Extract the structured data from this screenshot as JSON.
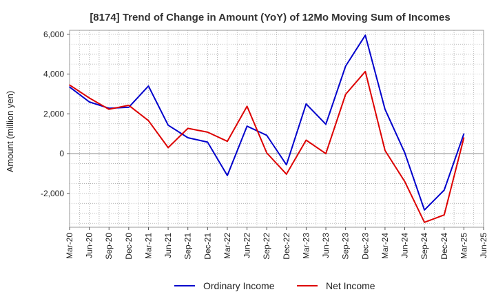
{
  "chart_data": {
    "type": "line",
    "title": "[8174]  Trend of Change in Amount (YoY) of 12Mo Moving Sum of Incomes",
    "xlabel": "",
    "ylabel": "Amount (million yen)",
    "ylim": [
      -3700,
      6200
    ],
    "yticks": [
      -2000,
      0,
      2000,
      4000,
      6000
    ],
    "ytick_labels": [
      "-2,000",
      "0",
      "2,000",
      "4,000",
      "6,000"
    ],
    "categories": [
      "Mar-20",
      "Jun-20",
      "Sep-20",
      "Dec-20",
      "Mar-21",
      "Jun-21",
      "Sep-21",
      "Dec-21",
      "Mar-22",
      "Jun-22",
      "Sep-22",
      "Dec-22",
      "Mar-23",
      "Jun-23",
      "Sep-23",
      "Dec-23",
      "Mar-24",
      "Jun-24",
      "Sep-24",
      "Dec-24",
      "Mar-25",
      "Jun-25"
    ],
    "grid": true,
    "legend_position": "bottom-center",
    "series": [
      {
        "name": "Ordinary Income",
        "color": "#0000cc",
        "values": [
          3350,
          2600,
          2280,
          2330,
          3400,
          1430,
          800,
          580,
          -1100,
          1380,
          920,
          -560,
          2500,
          1480,
          4400,
          5950,
          2230,
          50,
          -2830,
          -1830,
          1000,
          null
        ]
      },
      {
        "name": "Net Income",
        "color": "#dd0000",
        "values": [
          3450,
          2800,
          2230,
          2430,
          1660,
          300,
          1270,
          1080,
          620,
          2380,
          40,
          -1030,
          680,
          0,
          2980,
          4130,
          160,
          -1400,
          -3450,
          -3080,
          800,
          null
        ]
      }
    ]
  }
}
